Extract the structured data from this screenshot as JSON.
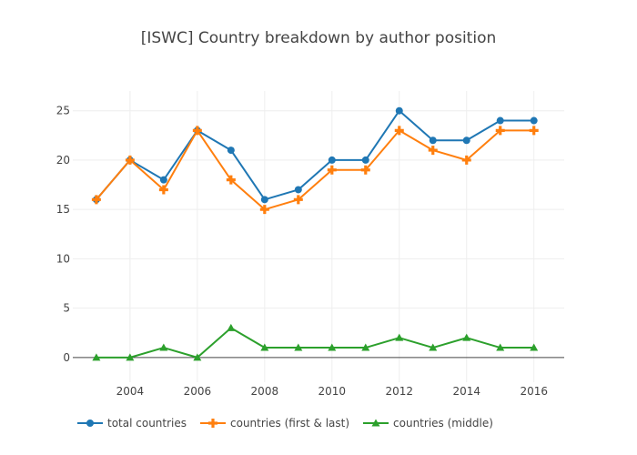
{
  "chart_data": {
    "type": "line",
    "title": "[ISWC] Country breakdown by author position",
    "xlabel": "",
    "ylabel": "",
    "x": [
      2003,
      2004,
      2005,
      2006,
      2007,
      2008,
      2009,
      2010,
      2011,
      2012,
      2013,
      2014,
      2015,
      2016
    ],
    "xlim": [
      2002.3,
      2016.9
    ],
    "ylim": [
      -2.5,
      27
    ],
    "xticks": [
      "2004",
      "2006",
      "2008",
      "2010",
      "2012",
      "2014",
      "2016"
    ],
    "yticks": [
      "0",
      "5",
      "10",
      "15",
      "20",
      "25"
    ],
    "grid": true,
    "legend_position": "bottom",
    "series": [
      {
        "name": "total countries",
        "color": "#1f77b4",
        "marker": "circle",
        "values": [
          16,
          20,
          18,
          23,
          21,
          16,
          17,
          20,
          20,
          25,
          22,
          22,
          24,
          24
        ]
      },
      {
        "name": "countries (first & last)",
        "color": "#ff7f0e",
        "marker": "cross",
        "values": [
          16,
          20,
          17,
          23,
          18,
          15,
          16,
          19,
          19,
          23,
          21,
          20,
          23,
          23
        ]
      },
      {
        "name": "countries (middle)",
        "color": "#2ca02c",
        "marker": "triangle",
        "values": [
          0,
          0,
          1,
          0,
          3,
          1,
          1,
          1,
          1,
          2,
          1,
          2,
          1,
          1
        ]
      }
    ]
  }
}
